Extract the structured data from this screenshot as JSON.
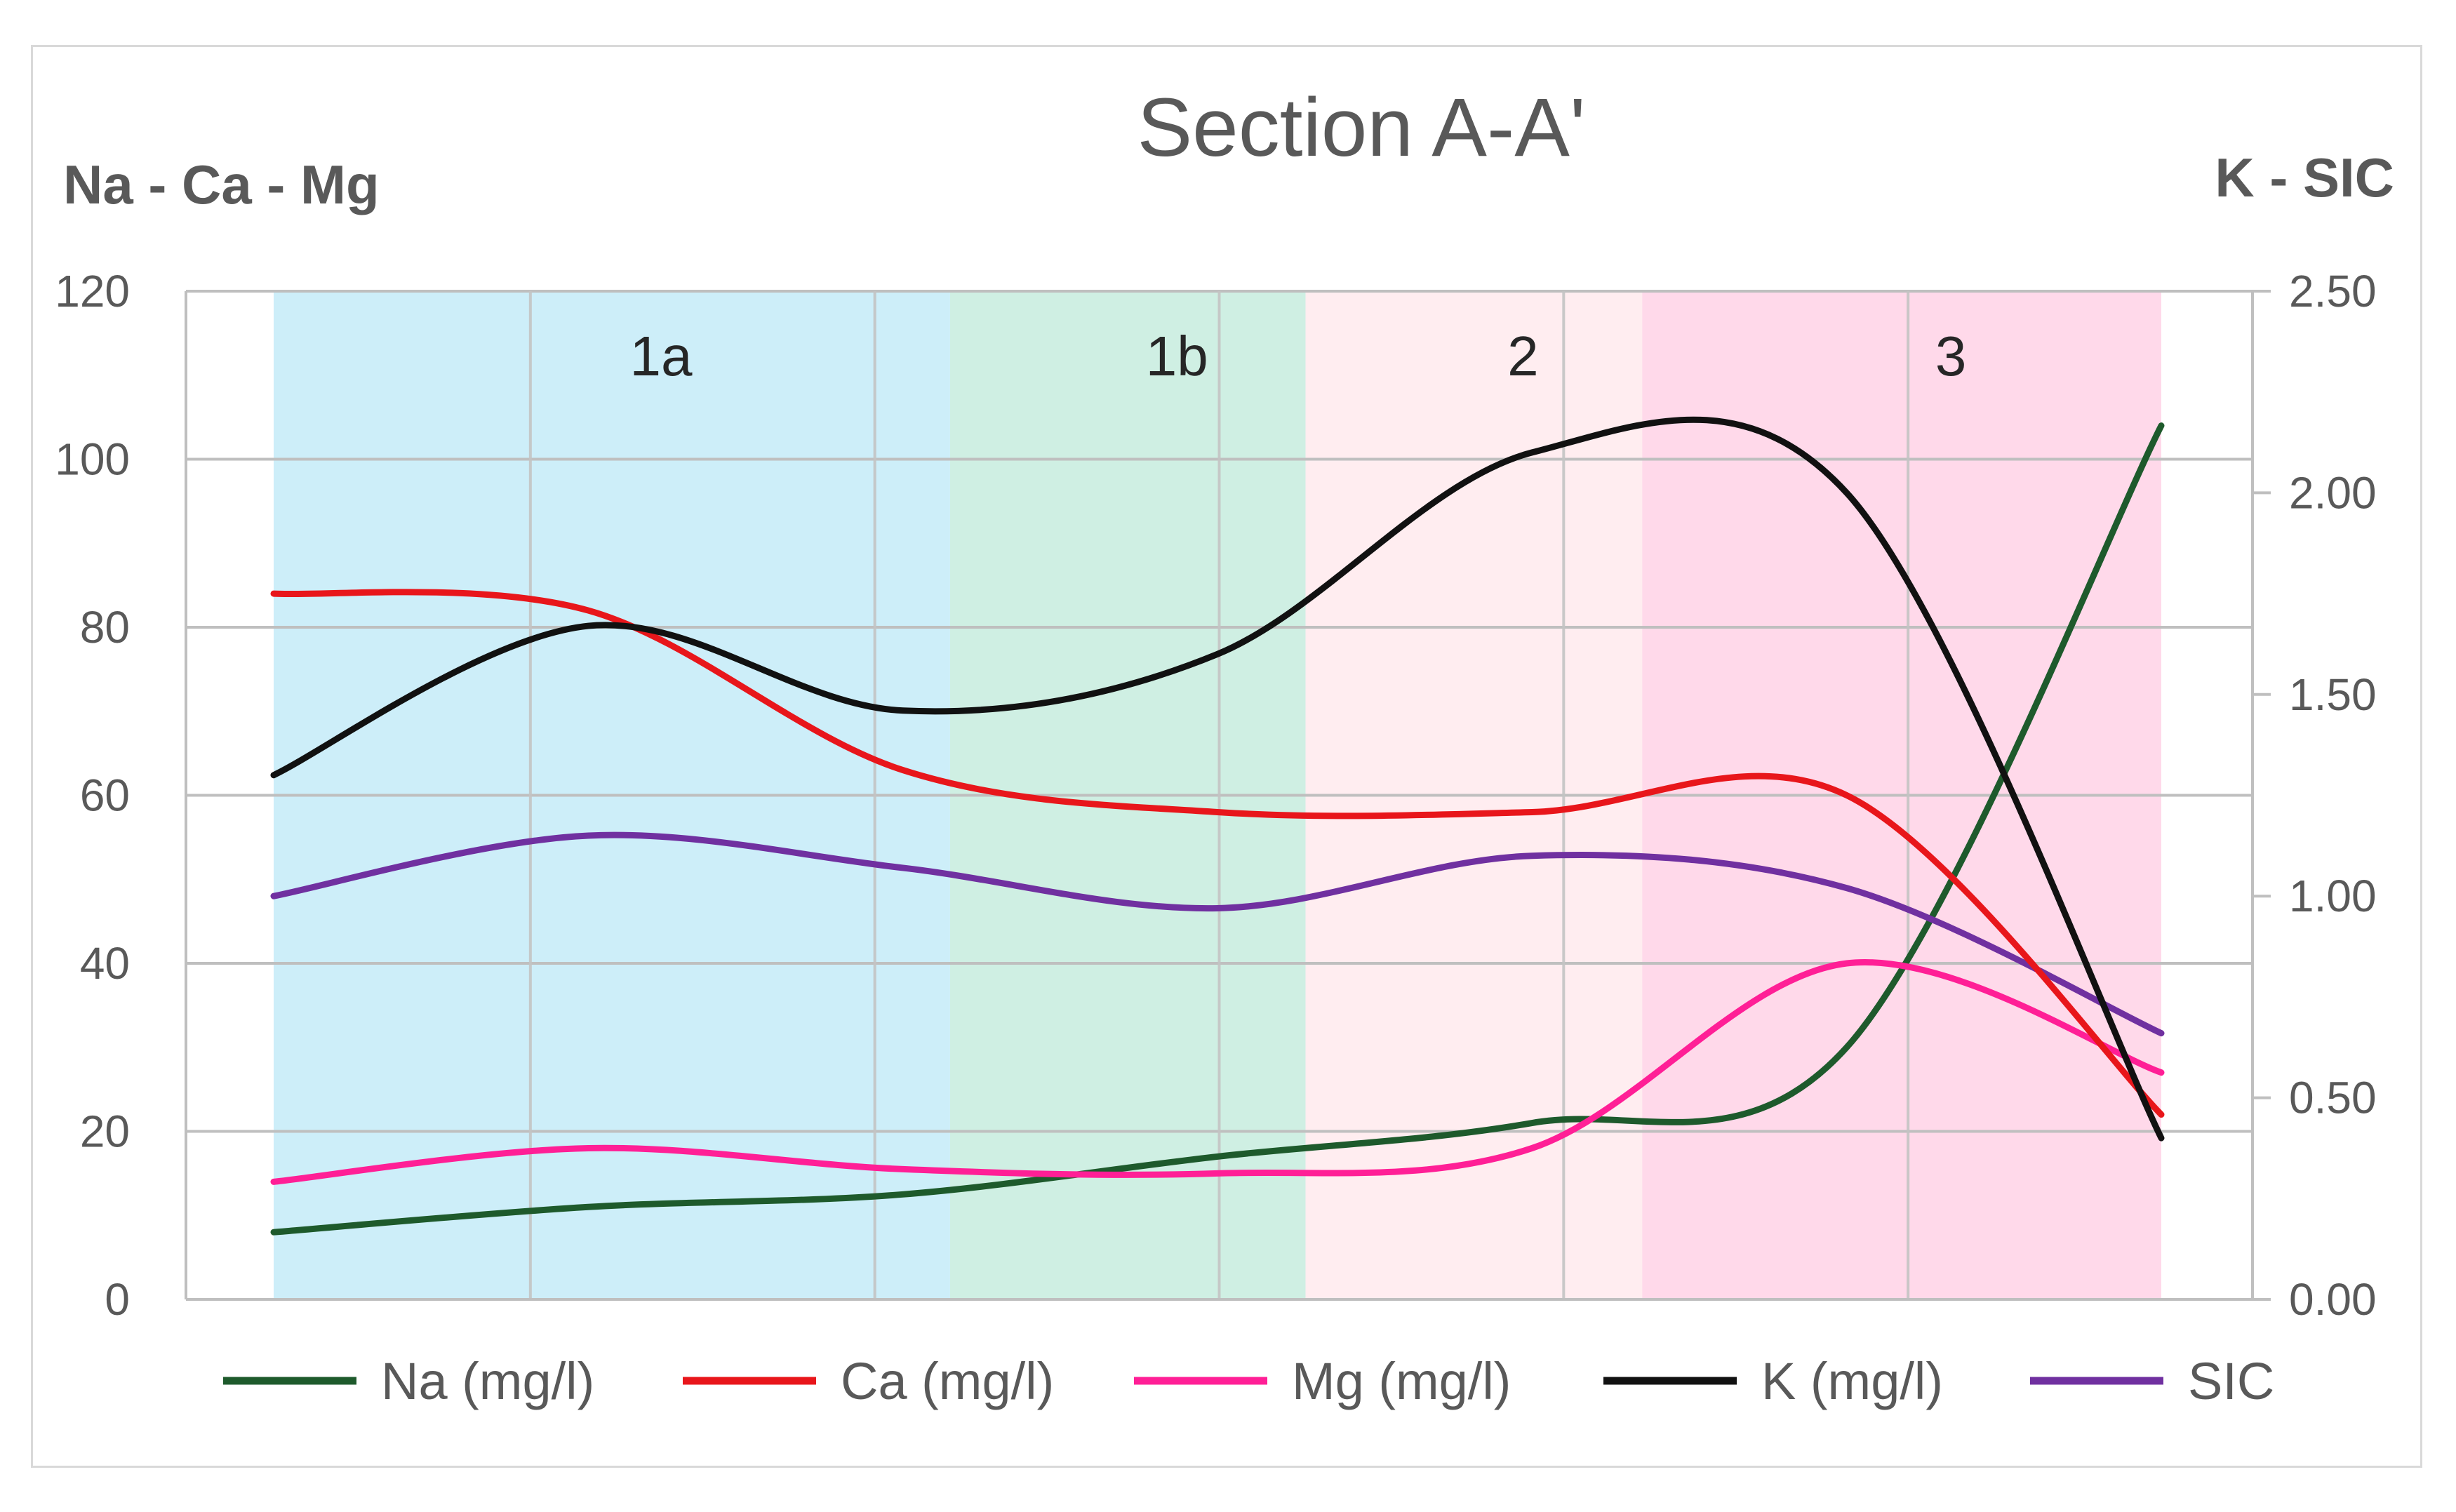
{
  "chart_data": {
    "type": "line",
    "title": "Section A-A'",
    "ylabel_left": "Na - Ca - Mg",
    "ylabel_right": "K - SIC",
    "ylim_left": [
      0,
      120
    ],
    "ylim_right": [
      0,
      2.5
    ],
    "y_ticks_left": [
      "0",
      "20",
      "40",
      "60",
      "80",
      "100",
      "120"
    ],
    "y_ticks_right": [
      "0.00",
      "0.50",
      "1.00",
      "1.50",
      "2.00",
      "2.50"
    ],
    "x": [
      0,
      1,
      2,
      3,
      4,
      5,
      6
    ],
    "zones": [
      {
        "label": "1a",
        "from": 0,
        "to": 2.15,
        "color": "#cdeef9"
      },
      {
        "label": "1b",
        "from": 2.15,
        "to": 3.28,
        "color": "#cfefe3"
      },
      {
        "label": "2",
        "from": 3.28,
        "to": 4.35,
        "color": "#ffedf0"
      },
      {
        "label": "3",
        "from": 4.35,
        "to": 6,
        "color": "#ffd9ea"
      }
    ],
    "series": [
      {
        "name": "Na (mg/l)",
        "axis": "left",
        "color": "#1e5a2c",
        "values": [
          8,
          11,
          12.5,
          17,
          21,
          30,
          104
        ]
      },
      {
        "name": "Ca (mg/l)",
        "axis": "left",
        "color": "#e8161b",
        "values": [
          84,
          82,
          63,
          58,
          58,
          60,
          22
        ]
      },
      {
        "name": "Mg (mg/l)",
        "axis": "left",
        "color": "#ff1f96",
        "values": [
          14,
          18,
          15.5,
          15,
          18,
          40,
          27
        ]
      },
      {
        "name": "K (mg/l)",
        "axis": "right",
        "color": "#111111",
        "values": [
          1.3,
          1.67,
          1.46,
          1.6,
          2.1,
          2.0,
          0.4
        ]
      },
      {
        "name": "SIC",
        "axis": "right",
        "color": "#7030a0",
        "values": [
          1.0,
          1.15,
          1.07,
          0.97,
          1.1,
          1.02,
          0.66
        ]
      }
    ]
  }
}
